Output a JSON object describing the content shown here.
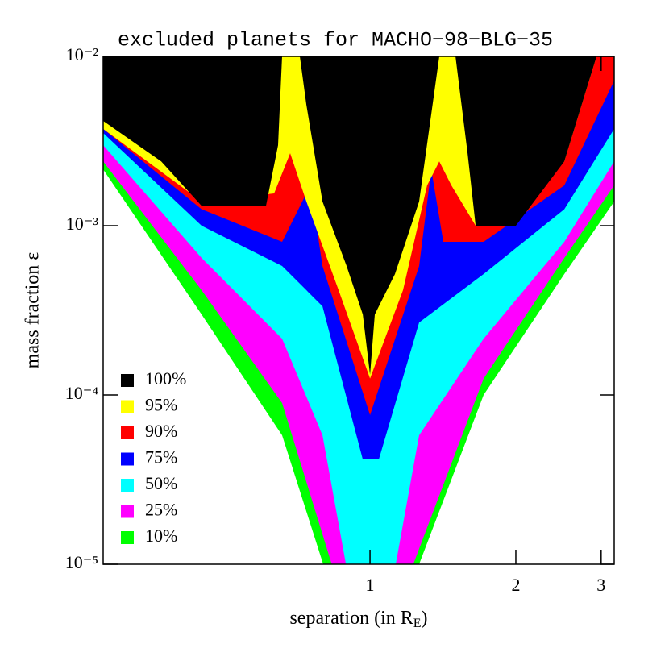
{
  "chart_data": {
    "type": "contour",
    "title": "excluded planets for MACHO−98−BLG−35",
    "ylabel": "mass fraction ε",
    "xlabel": "separation (in R",
    "xlabel_subscript": "E",
    "xlabel_end": ")",
    "xscale": "log",
    "yscale": "log",
    "xlim": [
      0.2813,
      3.192
    ],
    "ylim": [
      1e-05,
      0.01
    ],
    "xticks": [
      1,
      2,
      3
    ],
    "yticks": [
      {
        "value": 0.01,
        "label": "10⁻²"
      },
      {
        "value": 0.001,
        "label": "10⁻³"
      },
      {
        "value": 0.0001,
        "label": "10⁻⁴"
      },
      {
        "value": 1e-05,
        "label": "10⁻⁵"
      }
    ],
    "legend": "lower left",
    "series": [
      {
        "name": "100%",
        "color": "#000000",
        "x": [
          0.2813,
          0.2813,
          0.3707,
          0.449,
          0.61,
          0.6461,
          0.6586,
          null,
          0.7165,
          0.7389,
          0.7977,
          0.8948,
          0.9661,
          1,
          1.023,
          1.126,
          1.263,
          1.39,
          null,
          1.501,
          1.59,
          1.652,
          2.0,
          2.518,
          2.935
        ],
        "values": [
          0.01,
          0.00416,
          0.0024,
          0.00131,
          0.00131,
          0.00299,
          0.01,
          null,
          0.01,
          0.00518,
          0.00139,
          0.000578,
          0.000299,
          0.000132,
          0.000299,
          0.000518,
          0.00139,
          0.01,
          null,
          0.01,
          0.00268,
          0.001,
          0.001,
          0.0024,
          0.01
        ]
      },
      {
        "name": "95%",
        "color": "#ffff00",
        "x": [
          0.2813,
          0.2813,
          0.449,
          0.6339,
          0.6843,
          0.7389,
          0.8613,
          1,
          1.17,
          1.312,
          1.39,
          1.472,
          1.652,
          2.079,
          2.518,
          2.935,
          3.192
        ],
        "values": [
          0.01,
          0.00373,
          0.00139,
          0.00155,
          0.00268,
          0.00139,
          0.000416,
          0.000125,
          0.000416,
          0.00173,
          0.0024,
          0.00173,
          0.001,
          0.00125,
          0.0024,
          0.01,
          0.01
        ]
      },
      {
        "name": "90%",
        "color": "#ff0000",
        "x": [
          0.2813,
          0.2813,
          0.449,
          0.6586,
          0.7532,
          0.7977,
          1,
          1.263,
          1.338,
          1.417,
          1.716,
          2.518,
          3.192,
          3.192
        ],
        "values": [
          0.01,
          0.00373,
          0.00125,
          0.000803,
          0.00173,
          0.000578,
          7.6e-05,
          0.000578,
          0.00215,
          0.000803,
          0.000803,
          0.00173,
          0.0072,
          0.01
        ]
      },
      {
        "name": "75%",
        "color": "#0000ff",
        "x": [
          0.2813,
          0.2813,
          0.449,
          0.6586,
          0.7977,
          0.9661,
          1.043,
          1.263,
          1.716,
          2.518,
          3.192,
          3.192
        ],
        "values": [
          0.01,
          0.00353,
          0.001,
          0.000578,
          0.000334,
          4.16e-05,
          4.16e-05,
          0.000268,
          0.000518,
          0.00125,
          0.00373,
          0.01
        ]
      },
      {
        "name": "50%",
        "color": "#00ffff",
        "x": [
          0.2813,
          0.2813,
          0.449,
          0.6586,
          0.7977,
          0.9298,
          1.084,
          1.263,
          1.716,
          2.518,
          3.192,
          3.192
        ],
        "values": [
          0.01,
          0.00299,
          0.000645,
          0.000215,
          5.78e-05,
          5.18e-06,
          5.18e-06,
          5.78e-05,
          0.000215,
          0.000803,
          0.0024,
          0.01
        ]
      },
      {
        "name": "25%",
        "color": "#ff00ff",
        "x": [
          0.2813,
          0.2813,
          0.449,
          0.6586,
          0.8948,
          1.126,
          1.716,
          2.518,
          3.192,
          3.192
        ],
        "values": [
          0.01,
          0.0024,
          0.000416,
          8.96e-05,
          5.18e-06,
          5.18e-06,
          0.000125,
          0.000645,
          0.00173,
          0.01
        ]
      },
      {
        "name": "10%",
        "color": "#00ff00",
        "x": [
          0.2813,
          0.2813,
          0.449,
          0.6586,
          0.8613,
          1.157,
          1.716,
          2.518,
          3.192,
          3.192
        ],
        "values": [
          0.01,
          0.00215,
          0.000299,
          5.78e-05,
          5.18e-06,
          5.18e-06,
          0.0001,
          0.000518,
          0.00139,
          0.01
        ]
      }
    ]
  }
}
